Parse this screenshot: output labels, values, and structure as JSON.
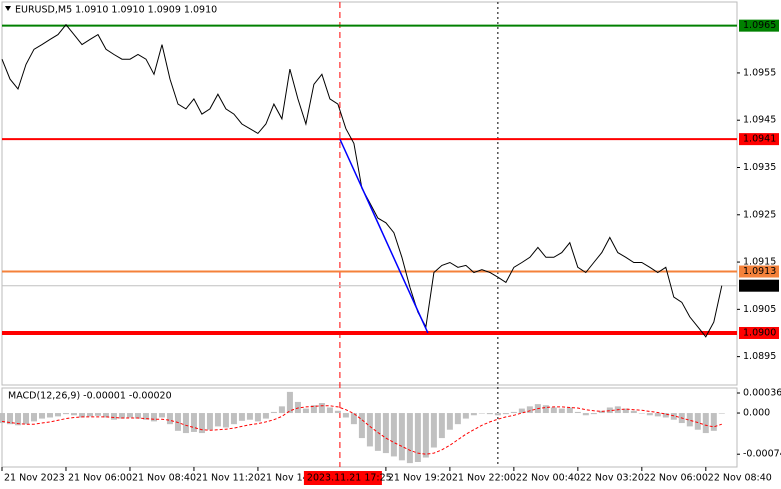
{
  "chart_data": [
    {
      "type": "line",
      "title": "EURUSD,M5  1.0910 1.0910 1.0909 1.0910",
      "color": "#000000",
      "x": [
        0,
        20,
        40,
        60,
        80,
        100,
        120,
        140,
        160,
        180,
        200,
        220,
        240,
        260,
        280,
        300,
        320,
        340,
        360,
        380,
        400,
        420,
        440,
        460,
        480,
        500,
        520,
        540,
        560,
        580,
        600,
        620,
        640,
        660,
        680,
        700,
        720,
        740,
        760,
        780,
        800,
        820,
        840,
        860,
        880,
        900,
        920,
        940,
        960,
        980,
        1000,
        1020,
        1040,
        1060,
        1080,
        1100,
        1120,
        1140,
        1160,
        1180,
        1200,
        1220,
        1240,
        1260,
        1280,
        1300,
        1320,
        1340,
        1360,
        1380,
        1400,
        1420,
        1440,
        1460,
        1480,
        1500,
        1520,
        1540,
        1560,
        1580,
        1600,
        1620,
        1640,
        1660,
        1680,
        1700,
        1720,
        1740,
        1760,
        1780,
        1800
      ],
      "values": [
        1.09579,
        1.09537,
        1.09516,
        1.09568,
        1.096,
        1.0961,
        1.09621,
        1.09631,
        1.09652,
        1.09631,
        1.0961,
        1.09621,
        1.09631,
        1.096,
        1.09589,
        1.09579,
        1.09579,
        1.09589,
        1.09579,
        1.09547,
        1.0961,
        1.09537,
        1.09484,
        1.09474,
        1.09495,
        1.09463,
        1.09474,
        1.09505,
        1.09474,
        1.09463,
        1.09442,
        1.09432,
        1.09422,
        1.09442,
        1.09484,
        1.09453,
        1.09558,
        1.09495,
        1.09442,
        1.09526,
        1.09547,
        1.09495,
        1.09484,
        1.09432,
        1.09401,
        1.09306,
        1.09275,
        1.09243,
        1.09233,
        1.09212,
        1.0916,
        1.09097,
        1.09044,
        1.09013,
        1.09128,
        1.09143,
        1.09149,
        1.09139,
        1.09143,
        1.09128,
        1.09134,
        1.09128,
        1.09118,
        1.09107,
        1.09139,
        1.09149,
        1.0916,
        1.09181,
        1.0916,
        1.0916,
        1.0917,
        1.09191,
        1.09139,
        1.09128,
        1.09149,
        1.0917,
        1.09202,
        1.0917,
        1.0916,
        1.09149,
        1.09149,
        1.09139,
        1.09128,
        1.09139,
        1.09076,
        1.09065,
        1.09034,
        1.09013,
        1.08992,
        1.09023,
        1.091
      ],
      "xlim": [
        0,
        1838
      ],
      "ylim": [
        1.0889,
        1.097
      ],
      "yticks": [
        1.0955,
        1.0945,
        1.0935,
        1.0925,
        1.0915,
        1.0905,
        1.0895
      ],
      "levels": [
        {
          "value": 1.0965,
          "color": "#008000"
        },
        {
          "value": 1.0941,
          "color": "#ff0000"
        },
        {
          "value": 1.0913,
          "color": "#f4813a"
        },
        {
          "value": 1.091,
          "label": "1.0910",
          "color": "#000000",
          "line_color": "#c0c0c0"
        },
        {
          "value": 1.09,
          "label": "1.0900",
          "color": "#ff0000",
          "thick": true
        }
      ],
      "trend_line": {
        "x": [
          845,
          1065
        ],
        "y": [
          1.0941,
          1.09
        ],
        "color": "#0000ff"
      },
      "vline": {
        "value": 845,
        "label": "2023.11.21 17:25",
        "color": "#ff0000"
      },
      "separators": [
        1240
      ]
    },
    {
      "type": "macd",
      "title": "MACD(12,26,9) -0.00001 -0.00020",
      "x": [
        0,
        20,
        40,
        60,
        80,
        100,
        120,
        140,
        160,
        180,
        200,
        220,
        240,
        260,
        280,
        300,
        320,
        340,
        360,
        380,
        400,
        420,
        440,
        460,
        480,
        500,
        520,
        540,
        560,
        580,
        600,
        620,
        640,
        660,
        680,
        700,
        720,
        740,
        760,
        780,
        800,
        820,
        840,
        860,
        880,
        900,
        920,
        940,
        960,
        980,
        1000,
        1020,
        1040,
        1060,
        1080,
        1100,
        1120,
        1140,
        1160,
        1180,
        1200,
        1220,
        1240,
        1260,
        1280,
        1300,
        1320,
        1340,
        1360,
        1380,
        1400,
        1420,
        1440,
        1460,
        1480,
        1500,
        1520,
        1540,
        1560,
        1580,
        1600,
        1620,
        1640,
        1660,
        1680,
        1700,
        1720,
        1740,
        1760,
        1780,
        1800
      ],
      "series": [
        {
          "name": "MACD",
          "color": "#c0c0c0",
          "values": [
            -0.00018,
            -0.0002,
            -0.00022,
            -0.0002,
            -0.00015,
            -0.0001,
            -8e-05,
            -6e-05,
            -2e-05,
            -4e-05,
            -8e-05,
            -6e-05,
            -5e-05,
            -8e-05,
            -0.00012,
            -0.0001,
            -8e-05,
            -0.0001,
            -0.00012,
            -0.00015,
            -8e-05,
            -0.0002,
            -0.00032,
            -0.00036,
            -0.00034,
            -0.00036,
            -0.0003,
            -0.00024,
            -0.00026,
            -0.0002,
            -0.00014,
            -0.00012,
            -0.00015,
            -0.0001,
            2e-05,
            0.00012,
            0.00038,
            0.0002,
            8e-05,
            0.00014,
            0.00018,
            0.0001,
            4e-05,
            -8e-05,
            -0.0002,
            -0.00045,
            -0.0006,
            -0.00068,
            -0.00072,
            -0.00078,
            -0.00085,
            -0.0009,
            -0.00088,
            -0.0008,
            -0.00062,
            -0.00045,
            -0.0003,
            -0.0002,
            -0.0001,
            -4e-05,
            0,
            -2e-05,
            -4e-05,
            -2e-05,
            2e-05,
            8e-05,
            0.00012,
            0.00016,
            0.00014,
            0.0001,
            8e-05,
            0.0001,
            2e-05,
            -4e-05,
            -2e-05,
            4e-05,
            0.0001,
            0.00012,
            8e-05,
            4e-05,
            0,
            -4e-05,
            -6e-05,
            -8e-05,
            -0.00012,
            -0.00018,
            -0.00024,
            -0.0003,
            -0.00036,
            -0.00032,
            -1e-05
          ]
        },
        {
          "name": "Signal",
          "color": "#ff0000",
          "values": [
            -0.00015,
            -0.00017,
            -0.00019,
            -0.0002,
            -0.0002,
            -0.00018,
            -0.00016,
            -0.00013,
            -0.0001,
            -8e-05,
            -7e-05,
            -7e-05,
            -7e-05,
            -7e-05,
            -8e-05,
            -9e-05,
            -9e-05,
            -9e-05,
            -0.0001,
            -0.00011,
            -0.00011,
            -0.00013,
            -0.00017,
            -0.00022,
            -0.00026,
            -0.0003,
            -0.00031,
            -0.0003,
            -0.00029,
            -0.00027,
            -0.00024,
            -0.00021,
            -0.00019,
            -0.00016,
            -0.00012,
            -6e-05,
            4e-05,
            9e-05,
            0.00011,
            0.00012,
            0.00013,
            0.00013,
            0.00011,
            6e-05,
            -1e-05,
            -0.00012,
            -0.00024,
            -0.00035,
            -0.00045,
            -0.00053,
            -0.0006,
            -0.00067,
            -0.00072,
            -0.00074,
            -0.00072,
            -0.00066,
            -0.00058,
            -0.00048,
            -0.00038,
            -0.0003,
            -0.00022,
            -0.00016,
            -0.00011,
            -7e-05,
            -4e-05,
            0,
            4e-05,
            8e-05,
            0.0001,
            0.00011,
            0.00011,
            0.0001,
            9e-05,
            6e-05,
            4e-05,
            3e-05,
            4e-05,
            6e-05,
            7e-05,
            6e-05,
            5e-05,
            3e-05,
            1e-05,
            -2e-05,
            -5e-05,
            -9e-05,
            -0.00013,
            -0.00017,
            -0.00022,
            -0.00025,
            -0.0002
          ]
        }
      ],
      "xlim": [
        0,
        1838
      ],
      "ylim": [
        -0.00097,
        0.00045
      ],
      "yticks": [
        0.00036,
        {
          "value": 0,
          "label": "0.000"
        },
        -0.00074
      ],
      "xticks": [
        {
          "value": 0,
          "label": "21 Nov 2023"
        },
        {
          "value": 160,
          "label": "21 Nov 06:00"
        },
        {
          "value": 320,
          "label": "21 Nov 08:40"
        },
        {
          "value": 480,
          "label": "21 Nov 11:20"
        },
        {
          "value": 640,
          "label": "21 Nov 14:00"
        },
        {
          "value": 960,
          "label": "21 Nov 19:20"
        },
        {
          "value": 1120,
          "label": "21 Nov 22:00"
        },
        {
          "value": 1280,
          "label": "22 Nov 00:40"
        },
        {
          "value": 1440,
          "label": "22 Nov 03:20"
        },
        {
          "value": 1600,
          "label": "22 Nov 06:00"
        },
        {
          "value": 1760,
          "label": "22 Nov 08:40"
        }
      ]
    }
  ]
}
